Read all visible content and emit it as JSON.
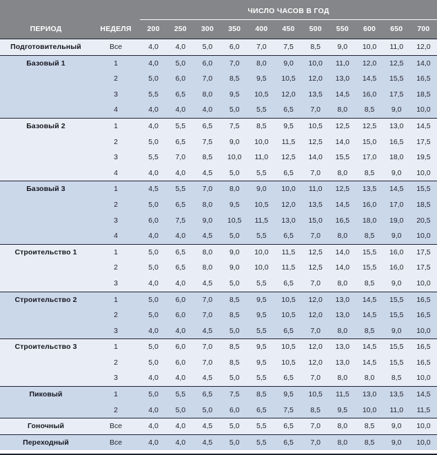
{
  "header": {
    "title": "ЧИСЛО ЧАСОВ В ГОД",
    "period_label": "ПЕРИОД",
    "week_label": "НЕДЕЛЯ",
    "hour_columns": [
      "200",
      "250",
      "300",
      "350",
      "400",
      "450",
      "500",
      "550",
      "600",
      "650",
      "700"
    ]
  },
  "colors": {
    "header_bg": "#858689",
    "header_text": "#ffffff",
    "block_light": "#e9eef6",
    "block_dark": "#cbd8ea",
    "separator": "#1c2134",
    "text": "#23232b"
  },
  "table": {
    "groups": [
      {
        "period": "Подготовительный",
        "shade": "light",
        "rows": [
          {
            "week": "Все",
            "values": [
              "4,0",
              "4,0",
              "5,0",
              "6,0",
              "7,0",
              "7,5",
              "8,5",
              "9,0",
              "10,0",
              "11,0",
              "12,0"
            ]
          }
        ]
      },
      {
        "period": "Базовый 1",
        "shade": "dark",
        "rows": [
          {
            "week": "1",
            "values": [
              "4,0",
              "5,0",
              "6,0",
              "7,0",
              "8,0",
              "9,0",
              "10,0",
              "11,0",
              "12,0",
              "12,5",
              "14,0"
            ]
          },
          {
            "week": "2",
            "values": [
              "5,0",
              "6,0",
              "7,0",
              "8,5",
              "9,5",
              "10,5",
              "12,0",
              "13,0",
              "14,5",
              "15,5",
              "16,5"
            ]
          },
          {
            "week": "3",
            "values": [
              "5,5",
              "6,5",
              "8,0",
              "9,5",
              "10,5",
              "12,0",
              "13,5",
              "14,5",
              "16,0",
              "17,5",
              "18,5"
            ]
          },
          {
            "week": "4",
            "values": [
              "4,0",
              "4,0",
              "4,0",
              "5,0",
              "5,5",
              "6,5",
              "7,0",
              "8,0",
              "8,5",
              "9,0",
              "10,0"
            ]
          }
        ]
      },
      {
        "period": "Базовый 2",
        "shade": "light",
        "rows": [
          {
            "week": "1",
            "values": [
              "4,0",
              "5,5",
              "6,5",
              "7,5",
              "8,5",
              "9,5",
              "10,5",
              "12,5",
              "12,5",
              "13,0",
              "14,5"
            ]
          },
          {
            "week": "2",
            "values": [
              "5,0",
              "6,5",
              "7,5",
              "9,0",
              "10,0",
              "11,5",
              "12,5",
              "14,0",
              "15,0",
              "16,5",
              "17,5"
            ]
          },
          {
            "week": "3",
            "values": [
              "5,5",
              "7,0",
              "8,5",
              "10,0",
              "11,0",
              "12,5",
              "14,0",
              "15,5",
              "17,0",
              "18,0",
              "19,5"
            ]
          },
          {
            "week": "4",
            "values": [
              "4,0",
              "4,0",
              "4,5",
              "5,0",
              "5,5",
              "6,5",
              "7,0",
              "8,0",
              "8,5",
              "9,0",
              "10,0"
            ]
          }
        ]
      },
      {
        "period": "Базовый 3",
        "shade": "dark",
        "rows": [
          {
            "week": "1",
            "values": [
              "4,5",
              "5,5",
              "7,0",
              "8,0",
              "9,0",
              "10,0",
              "11,0",
              "12,5",
              "13,5",
              "14,5",
              "15,5"
            ]
          },
          {
            "week": "2",
            "values": [
              "5,0",
              "6,5",
              "8,0",
              "9,5",
              "10,5",
              "12,0",
              "13,5",
              "14,5",
              "16,0",
              "17,0",
              "18,5"
            ]
          },
          {
            "week": "3",
            "values": [
              "6,0",
              "7,5",
              "9,0",
              "10,5",
              "11,5",
              "13,0",
              "15,0",
              "16,5",
              "18,0",
              "19,0",
              "20,5"
            ]
          },
          {
            "week": "4",
            "values": [
              "4,0",
              "4,0",
              "4,5",
              "5,0",
              "5,5",
              "6,5",
              "7,0",
              "8,0",
              "8,5",
              "9,0",
              "10,0"
            ]
          }
        ]
      },
      {
        "period": "Строительство 1",
        "shade": "light",
        "rows": [
          {
            "week": "1",
            "values": [
              "5,0",
              "6,5",
              "8,0",
              "9,0",
              "10,0",
              "11,5",
              "12,5",
              "14,0",
              "15,5",
              "16,0",
              "17,5"
            ]
          },
          {
            "week": "2",
            "values": [
              "5,0",
              "6,5",
              "8,0",
              "9,0",
              "10,0",
              "11,5",
              "12,5",
              "14,0",
              "15,5",
              "16,0",
              "17,5"
            ]
          },
          {
            "week": "3",
            "values": [
              "4,0",
              "4,0",
              "4,5",
              "5,0",
              "5,5",
              "6,5",
              "7,0",
              "8,0",
              "8,5",
              "9,0",
              "10,0"
            ]
          }
        ]
      },
      {
        "period": "Строительство 2",
        "shade": "dark",
        "rows": [
          {
            "week": "1",
            "values": [
              "5,0",
              "6,0",
              "7,0",
              "8,5",
              "9,5",
              "10,5",
              "12,0",
              "13,0",
              "14,5",
              "15,5",
              "16,5"
            ]
          },
          {
            "week": "2",
            "values": [
              "5,0",
              "6,0",
              "7,0",
              "8,5",
              "9,5",
              "10,5",
              "12,0",
              "13,0",
              "14,5",
              "15,5",
              "16,5"
            ]
          },
          {
            "week": "3",
            "values": [
              "4,0",
              "4,0",
              "4,5",
              "5,0",
              "5,5",
              "6,5",
              "7,0",
              "8,0",
              "8,5",
              "9,0",
              "10,0"
            ]
          }
        ]
      },
      {
        "period": "Строительство 3",
        "shade": "light",
        "rows": [
          {
            "week": "1",
            "values": [
              "5,0",
              "6,0",
              "7,0",
              "8,5",
              "9,5",
              "10,5",
              "12,0",
              "13,0",
              "14,5",
              "15,5",
              "16,5"
            ]
          },
          {
            "week": "2",
            "values": [
              "5,0",
              "6,0",
              "7,0",
              "8,5",
              "9,5",
              "10,5",
              "12,0",
              "13,0",
              "14,5",
              "15,5",
              "16,5"
            ]
          },
          {
            "week": "3",
            "values": [
              "4,0",
              "4,0",
              "4,5",
              "5,0",
              "5,5",
              "6,5",
              "7,0",
              "8,0",
              "8,0",
              "8,5",
              "10,0"
            ]
          }
        ]
      },
      {
        "period": "Пиковый",
        "shade": "dark",
        "rows": [
          {
            "week": "1",
            "values": [
              "5,0",
              "5,5",
              "6,5",
              "7,5",
              "8,5",
              "9,5",
              "10,5",
              "11,5",
              "13,0",
              "13,5",
              "14,5"
            ]
          },
          {
            "week": "2",
            "values": [
              "4,0",
              "5,0",
              "5,0",
              "6,0",
              "6,5",
              "7,5",
              "8,5",
              "9,5",
              "10,0",
              "11,0",
              "11,5"
            ]
          }
        ]
      },
      {
        "period": "Гоночный",
        "shade": "light",
        "rows": [
          {
            "week": "Все",
            "values": [
              "4,0",
              "4,0",
              "4,5",
              "5,0",
              "5,5",
              "6,5",
              "7,0",
              "8,0",
              "8,5",
              "9,0",
              "10,0"
            ]
          }
        ]
      },
      {
        "period": "Переходный",
        "shade": "dark",
        "rows": [
          {
            "week": "Все",
            "values": [
              "4,0",
              "4,0",
              "4,5",
              "5,0",
              "5,5",
              "6,5",
              "7,0",
              "8,0",
              "8,5",
              "9,0",
              "10,0"
            ]
          }
        ]
      }
    ]
  }
}
